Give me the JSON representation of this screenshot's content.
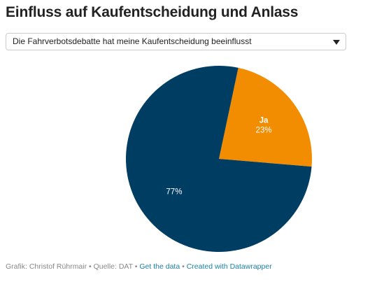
{
  "chart_data": {
    "type": "pie",
    "title": "Einfluss auf Kaufentscheidung und Anlass",
    "selector": "Die Fahrverbotsdebatte hat meine Kaufentscheidung beeinflusst",
    "categories": [
      "Ja",
      null
    ],
    "values": [
      23,
      77
    ],
    "value_labels": [
      "23%",
      "77%"
    ],
    "colors": [
      "#f28c00",
      "#003d63"
    ],
    "footer": {
      "credit": "Grafik: Christof Rührmair",
      "source": "Quelle: DAT",
      "data_link": "Get the data",
      "made_with": "Created with Datawrapper",
      "separator": "•"
    }
  }
}
